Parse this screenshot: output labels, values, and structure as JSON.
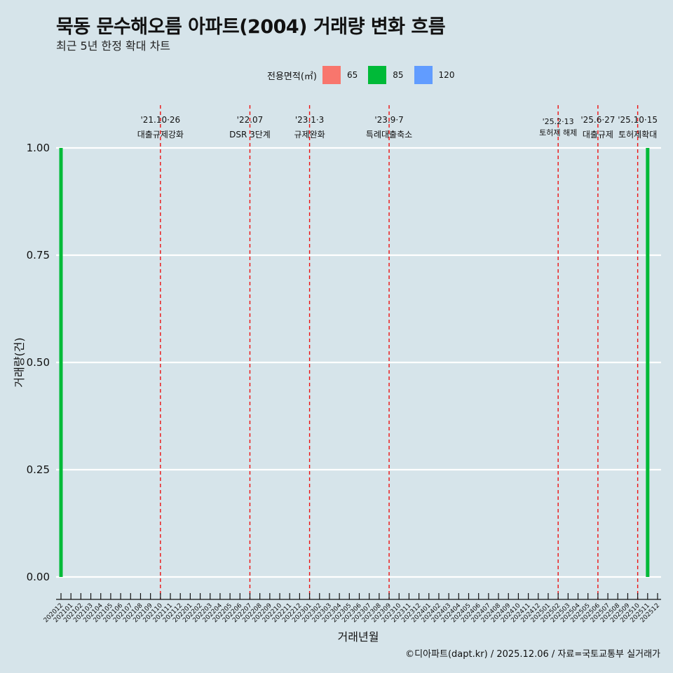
{
  "header": {
    "title": "묵동 문수해오름 아파트(2004) 거래량 변화 흐름",
    "subtitle": "최근 5년 한정 확대 차트"
  },
  "legend": {
    "title": "전용면적(㎡)",
    "items": [
      {
        "label": "65",
        "color": "#f8766d"
      },
      {
        "label": "85",
        "color": "#00ba38"
      },
      {
        "label": "120",
        "color": "#619cff"
      }
    ]
  },
  "footer": "©디아파트(dapt.kr) / 2025.12.06 / 자료=국토교통부 실거래가",
  "chart_data": {
    "type": "bar",
    "title": "묵동 문수해오름 아파트(2004) 거래량 변화 흐름",
    "subtitle": "최근 5년 한정 확대 차트",
    "xlabel": "거래년월",
    "ylabel": "거래량(건)",
    "ylim": [
      0,
      1
    ],
    "yticks": [
      "0.00",
      "0.25",
      "0.50",
      "0.75",
      "1.00"
    ],
    "grid": true,
    "legend_position": "top",
    "categories": [
      "202012",
      "202101",
      "202102",
      "202103",
      "202104",
      "202105",
      "202106",
      "202107",
      "202108",
      "202109",
      "202110",
      "202111",
      "202112",
      "202201",
      "202202",
      "202203",
      "202204",
      "202205",
      "202206",
      "202207",
      "202208",
      "202209",
      "202210",
      "202211",
      "202212",
      "202301",
      "202302",
      "202303",
      "202304",
      "202305",
      "202306",
      "202307",
      "202308",
      "202309",
      "202310",
      "202311",
      "202312",
      "202401",
      "202402",
      "202403",
      "202404",
      "202405",
      "202406",
      "202407",
      "202408",
      "202409",
      "202410",
      "202411",
      "202412",
      "202501",
      "202502",
      "202503",
      "202504",
      "202505",
      "202506",
      "202507",
      "202508",
      "202509",
      "202510",
      "202511",
      "202512"
    ],
    "series": [
      {
        "name": "65",
        "color": "#f8766d",
        "points": []
      },
      {
        "name": "85",
        "color": "#00ba38",
        "points": [
          {
            "x": "202012",
            "y": 1
          },
          {
            "x": "202511",
            "y": 1
          }
        ]
      },
      {
        "name": "120",
        "color": "#619cff",
        "points": []
      }
    ],
    "annotations": [
      {
        "x": "202110",
        "date": "'21.10·26",
        "label": "대출규제강화"
      },
      {
        "x": "202207",
        "date": "'22.07",
        "label": "DSR 3단계"
      },
      {
        "x": "202301",
        "date": "'23.1·3",
        "label": "규제완화"
      },
      {
        "x": "202309",
        "date": "'23.9·7",
        "label": "특례대출축소"
      },
      {
        "x": "202502",
        "date": "'25.2·13",
        "label": "토허제 해제"
      },
      {
        "x": "202506",
        "date": "'25.6·27",
        "label": "대출규제"
      },
      {
        "x": "202510",
        "date": "'25.10·15",
        "label": "토허제확대"
      }
    ]
  }
}
